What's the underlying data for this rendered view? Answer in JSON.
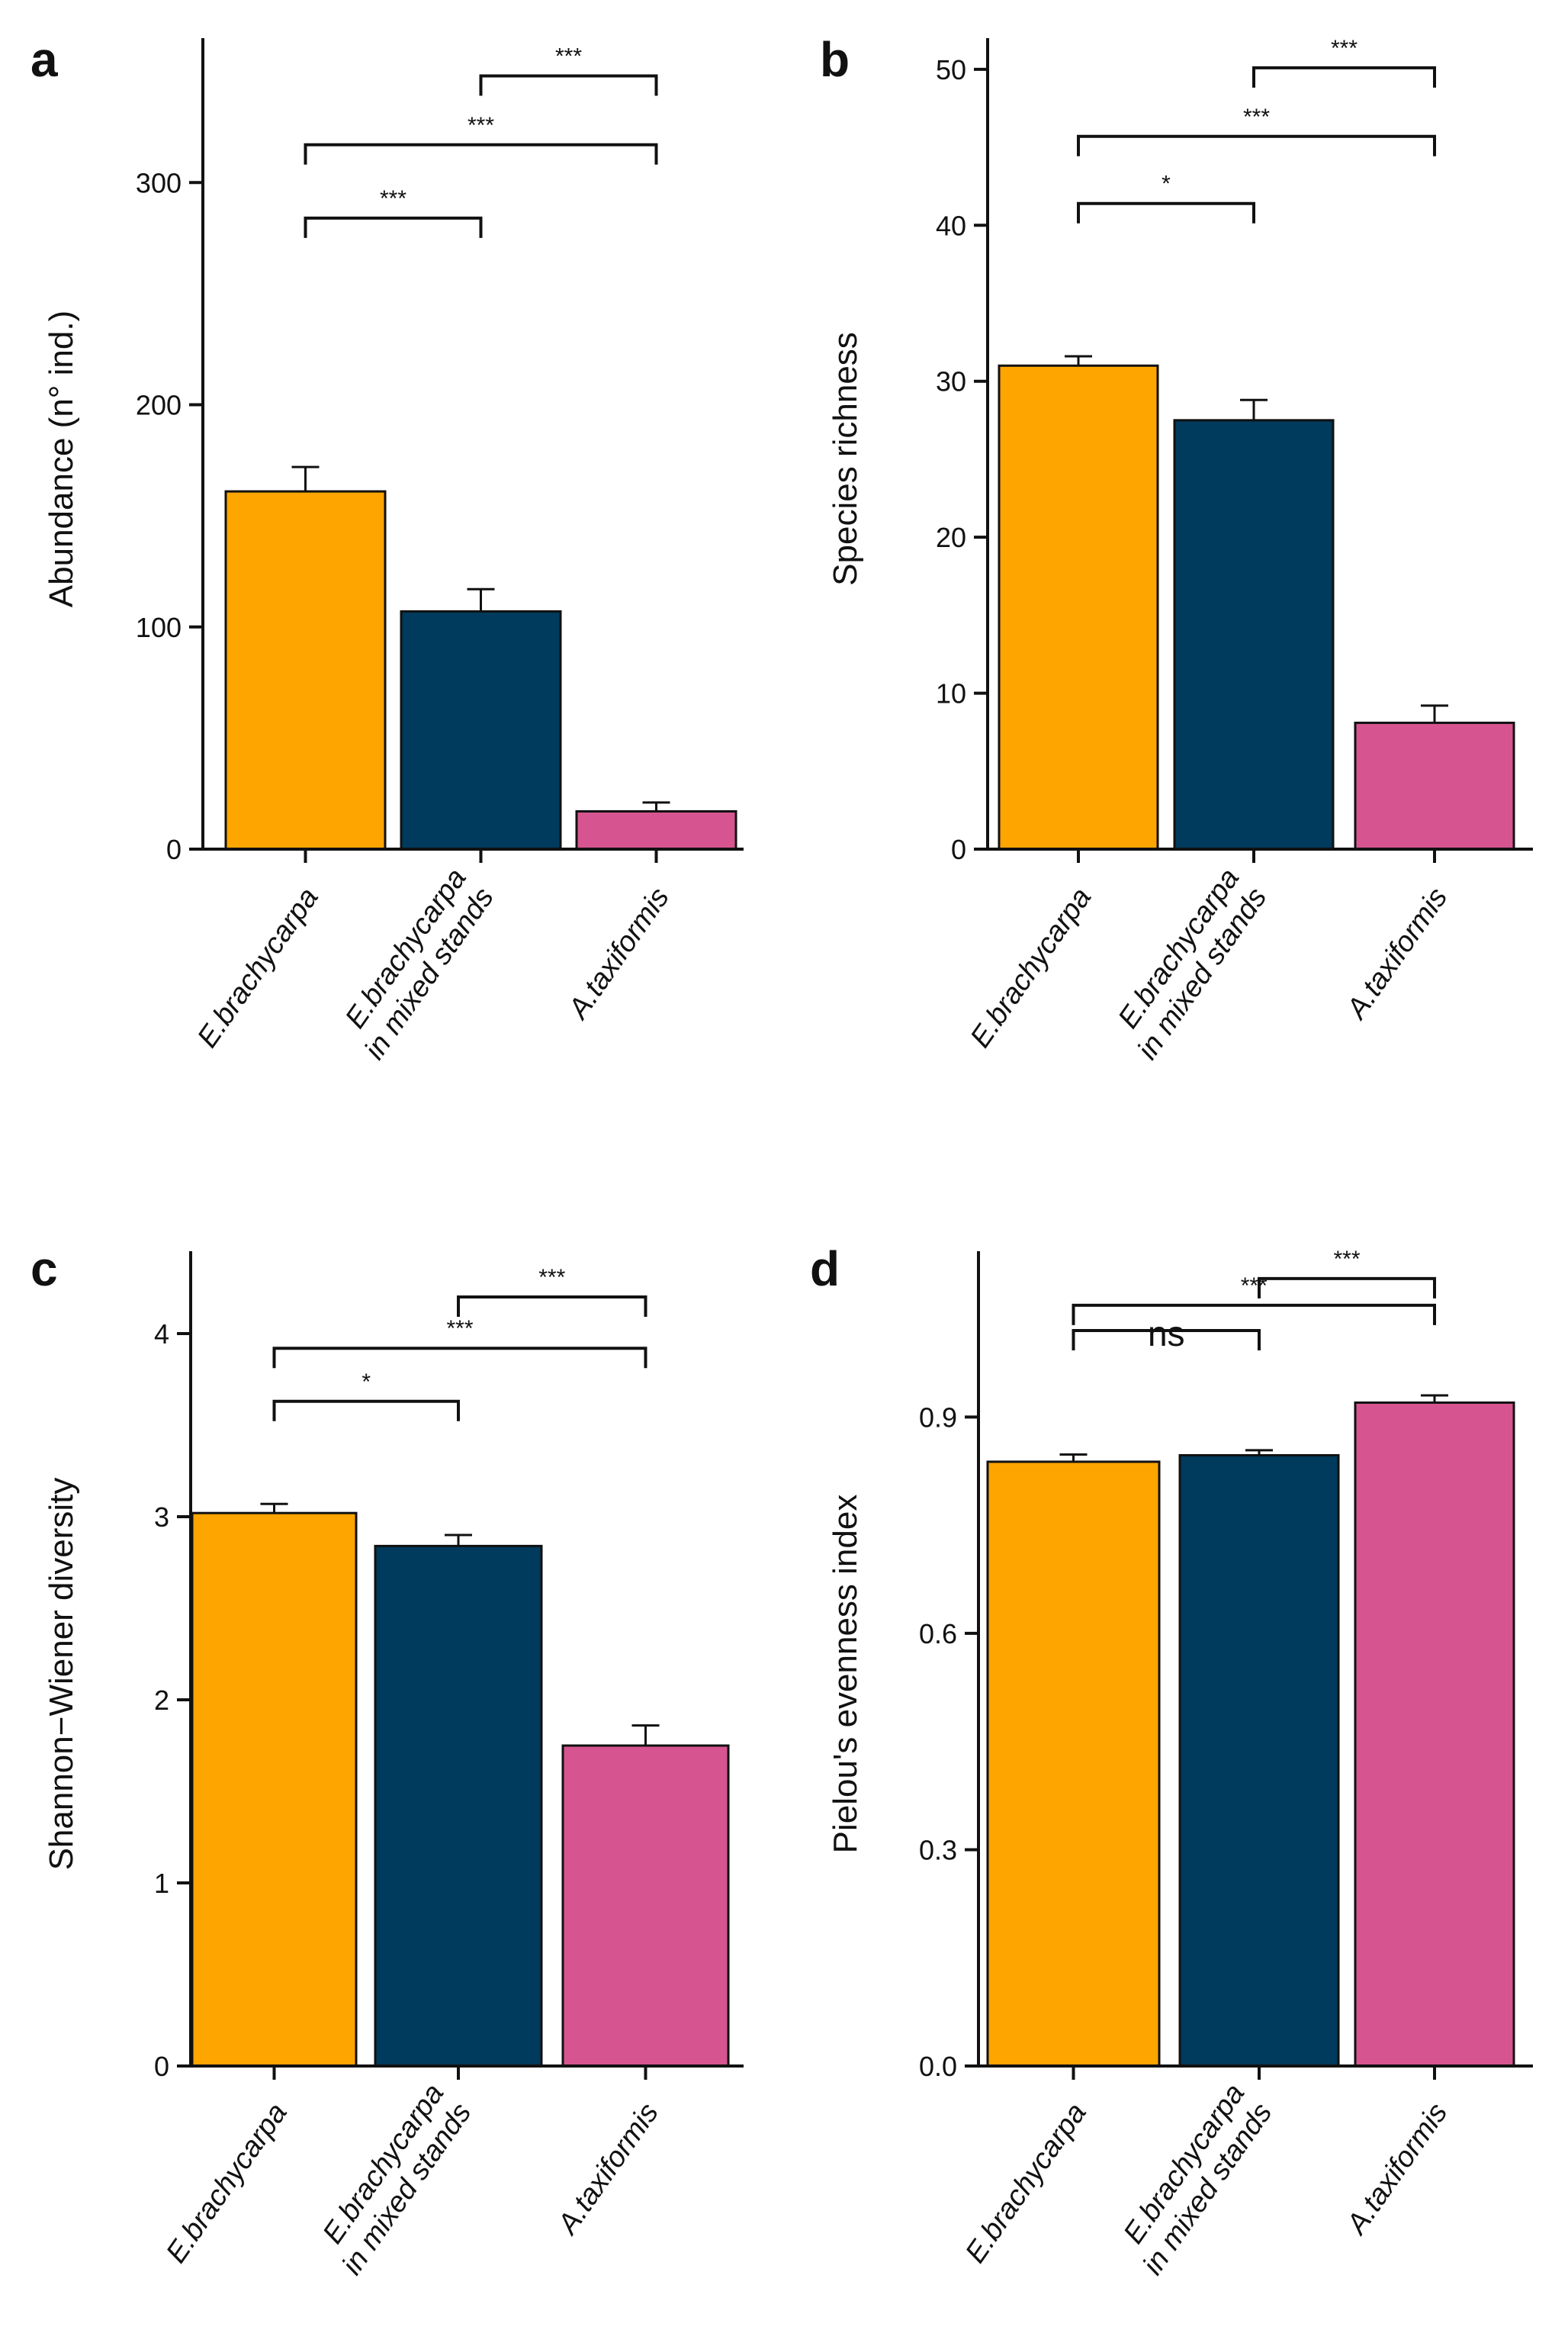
{
  "chart_data": [
    {
      "id": "a",
      "type": "bar",
      "panel_label": "a",
      "ylabel": "Abundance (n° ind.)",
      "categories": [
        [
          "E.brachycarpa"
        ],
        [
          "E.brachycarpa",
          "in mixed stands"
        ],
        [
          "A.taxiformis"
        ]
      ],
      "values": [
        161,
        107,
        17
      ],
      "errors": [
        11,
        10,
        4
      ],
      "ylim": [
        0,
        365
      ],
      "ticks": [
        0,
        100,
        200,
        300
      ],
      "tick_labels": [
        "0",
        "100",
        "200",
        "300"
      ],
      "colors": [
        "#FFA500",
        "#003A5C",
        "#D65590"
      ],
      "significance": [
        {
          "from": 0,
          "to": 1,
          "y": 284,
          "label": "***",
          "drop": true
        },
        {
          "from": 0,
          "to": 2,
          "y": 317,
          "label": "***",
          "drop": true
        },
        {
          "from": 1,
          "to": 2,
          "y": 348,
          "label": "***",
          "drop": true
        }
      ]
    },
    {
      "id": "b",
      "type": "bar",
      "panel_label": "b",
      "ylabel": "Species richness",
      "categories": [
        [
          "E.brachycarpa"
        ],
        [
          "E.brachycarpa",
          "in mixed stands"
        ],
        [
          "A.taxiformis"
        ]
      ],
      "values": [
        31,
        27.5,
        8.1
      ],
      "errors": [
        0.6,
        1.3,
        1.1
      ],
      "ylim": [
        0,
        52
      ],
      "ticks": [
        0,
        10,
        20,
        30,
        40,
        50
      ],
      "tick_labels": [
        "0",
        "10",
        "20",
        "30",
        "40",
        "50"
      ],
      "colors": [
        "#FFA500",
        "#003A5C",
        "#D65590"
      ],
      "significance": [
        {
          "from": 0,
          "to": 1,
          "y": 41.4,
          "label": "*",
          "drop": true
        },
        {
          "from": 0,
          "to": 2,
          "y": 45.7,
          "label": "***",
          "drop": true
        },
        {
          "from": 1,
          "to": 2,
          "y": 50.1,
          "label": "***",
          "drop": true
        }
      ]
    },
    {
      "id": "c",
      "type": "bar",
      "panel_label": "c",
      "ylabel": "Shannon−Wiener diversity",
      "categories": [
        [
          "E.brachycarpa"
        ],
        [
          "E.brachycarpa",
          "in mixed stands"
        ],
        [
          "A.taxiformis"
        ]
      ],
      "values": [
        3.02,
        2.84,
        1.75
      ],
      "errors": [
        0.05,
        0.06,
        0.11
      ],
      "ylim": [
        0,
        4.45
      ],
      "ticks": [
        0,
        1,
        2,
        3,
        4
      ],
      "tick_labels": [
        "0",
        "1",
        "2",
        "3",
        "4"
      ],
      "colors": [
        "#FFA500",
        "#003A5C",
        "#D65590"
      ],
      "significance": [
        {
          "from": 0,
          "to": 1,
          "y": 3.63,
          "label": "*",
          "drop": true
        },
        {
          "from": 0,
          "to": 2,
          "y": 3.92,
          "label": "***",
          "drop": true
        },
        {
          "from": 1,
          "to": 2,
          "y": 4.2,
          "label": "***",
          "drop": true
        }
      ]
    },
    {
      "id": "d",
      "type": "bar",
      "panel_label": "d",
      "ylabel": "Pielou's evenness index",
      "categories": [
        [
          "E.brachycarpa"
        ],
        [
          "E.brachycarpa",
          "in mixed stands"
        ],
        [
          "A.taxiformis"
        ]
      ],
      "values": [
        0.838,
        0.847,
        0.92
      ],
      "errors": [
        0.01,
        0.007,
        0.01
      ],
      "ylim": [
        0,
        1.13
      ],
      "ticks": [
        0.0,
        0.3,
        0.6,
        0.9
      ],
      "tick_labels": [
        "0.0",
        "0.3",
        "0.6",
        "0.9"
      ],
      "colors": [
        "#FFA500",
        "#003A5C",
        "#D65590"
      ],
      "significance": [
        {
          "from": 0,
          "to": 1,
          "y": 1.02,
          "label": "ns",
          "drop": true
        },
        {
          "from": 0,
          "to": 2,
          "y": 1.055,
          "label": "***",
          "drop": true
        },
        {
          "from": 1,
          "to": 2,
          "y": 1.092,
          "label": "***",
          "drop": true
        }
      ]
    }
  ]
}
